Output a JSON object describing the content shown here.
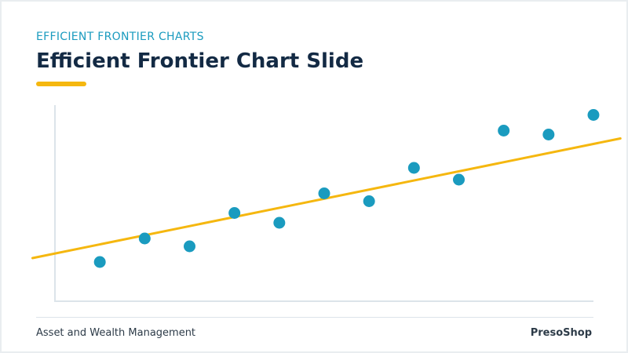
{
  "header": {
    "eyebrow": "EFFICIENT FRONTIER CHARTS",
    "title": "Efficient Frontier Chart Slide"
  },
  "footer": {
    "left": "Asset and Wealth Management",
    "right": "PresoShop"
  },
  "colors": {
    "accent": "#f5b70f",
    "point": "#1a9bbf",
    "heading": "#132a44",
    "eyebrow": "#1a9bbf"
  },
  "chart_data": {
    "type": "scatter",
    "grid": false,
    "xlim": [
      0,
      12
    ],
    "ylim": [
      0,
      10
    ],
    "x": [
      1,
      2,
      3,
      4,
      5,
      6,
      7,
      8,
      9,
      10,
      11,
      12
    ],
    "y": [
      2.0,
      3.2,
      2.8,
      4.5,
      4.0,
      5.5,
      5.1,
      6.8,
      6.2,
      8.7,
      8.5,
      9.5
    ],
    "trendline": {
      "x": [
        -0.5,
        12.6
      ],
      "y": [
        2.2,
        8.3
      ]
    }
  }
}
